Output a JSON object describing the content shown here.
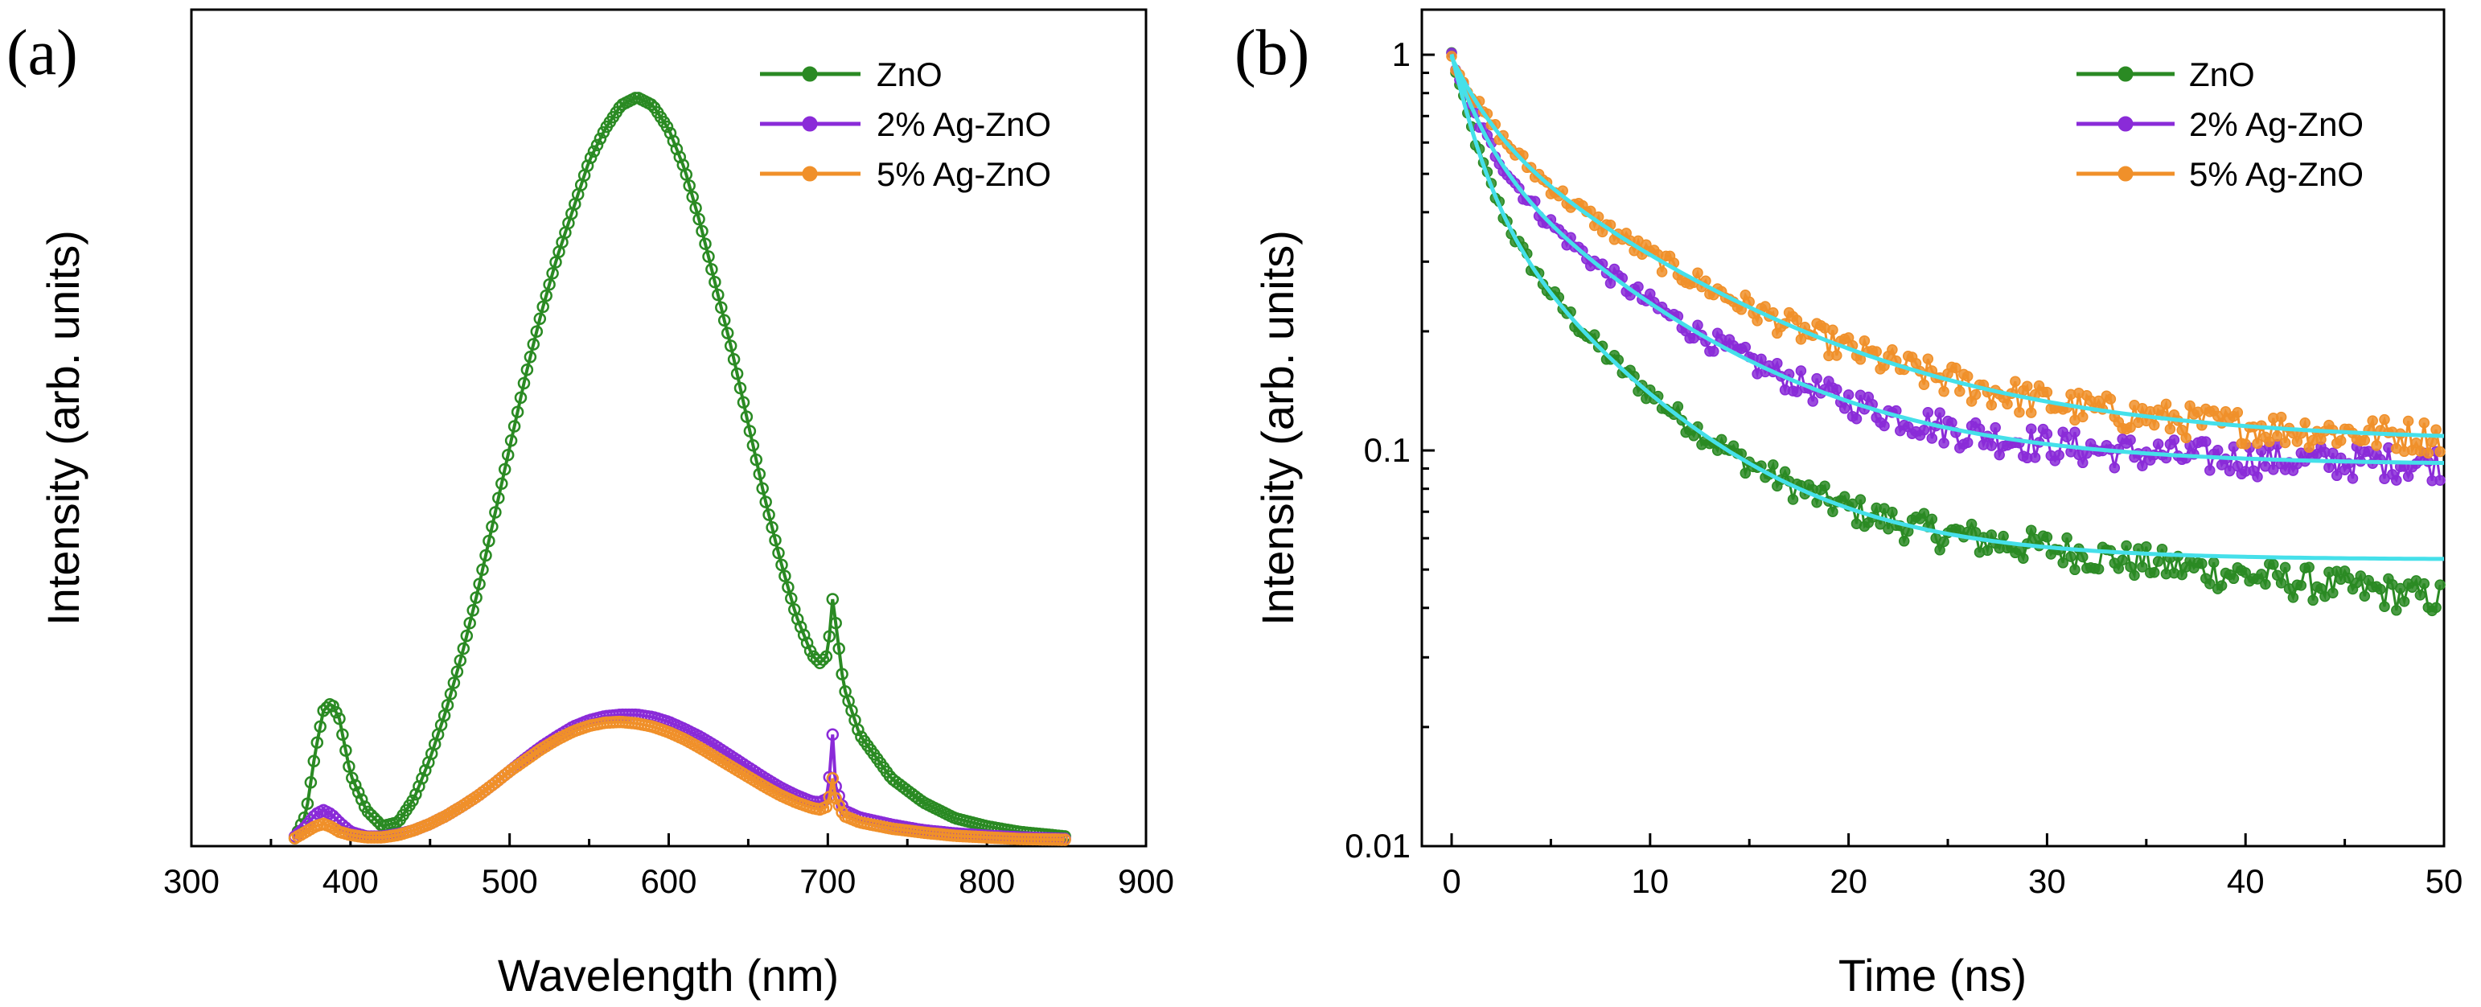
{
  "colors": {
    "zno": "#2a8a23",
    "ag2": "#8a2bd8",
    "ag5": "#f0902a",
    "fit": "#45e0ea"
  },
  "chart_data": [
    {
      "panel": "(a)",
      "type": "line",
      "title": "",
      "xlabel": "Wavelength (nm)",
      "ylabel": "Intensity (arb. units)",
      "xlim": [
        300,
        900
      ],
      "ylim": [
        0,
        1.05
      ],
      "xticks": [
        300,
        400,
        500,
        600,
        700,
        800,
        900
      ],
      "yticks_shown": false,
      "legend_position": "top-right",
      "series": [
        {
          "name": "ZnO",
          "color": "#2a8a23",
          "x": [
            365,
            372,
            378,
            383,
            388,
            393,
            400,
            410,
            420,
            430,
            440,
            450,
            460,
            470,
            480,
            490,
            500,
            510,
            520,
            530,
            540,
            550,
            560,
            570,
            580,
            590,
            600,
            610,
            620,
            630,
            640,
            650,
            660,
            670,
            680,
            690,
            695,
            700,
            703,
            705,
            710,
            720,
            740,
            760,
            780,
            800,
            820,
            850
          ],
          "y": [
            0.01,
            0.04,
            0.12,
            0.17,
            0.18,
            0.16,
            0.09,
            0.045,
            0.025,
            0.03,
            0.06,
            0.11,
            0.17,
            0.24,
            0.32,
            0.41,
            0.5,
            0.59,
            0.67,
            0.74,
            0.8,
            0.86,
            0.9,
            0.93,
            0.94,
            0.93,
            0.9,
            0.85,
            0.78,
            0.7,
            0.62,
            0.53,
            0.44,
            0.36,
            0.29,
            0.24,
            0.23,
            0.24,
            0.31,
            0.28,
            0.2,
            0.14,
            0.085,
            0.055,
            0.035,
            0.025,
            0.018,
            0.012
          ]
        },
        {
          "name": "2% Ag-ZnO",
          "color": "#8a2bd8",
          "x": [
            365,
            372,
            378,
            383,
            388,
            393,
            400,
            410,
            420,
            430,
            440,
            450,
            460,
            470,
            480,
            490,
            500,
            510,
            520,
            530,
            540,
            550,
            560,
            570,
            580,
            590,
            600,
            610,
            620,
            630,
            640,
            650,
            660,
            670,
            680,
            690,
            695,
            700,
            703,
            705,
            710,
            720,
            740,
            760,
            780,
            800,
            820,
            850
          ],
          "y": [
            0.012,
            0.025,
            0.04,
            0.045,
            0.04,
            0.03,
            0.018,
            0.012,
            0.012,
            0.015,
            0.02,
            0.028,
            0.038,
            0.05,
            0.063,
            0.078,
            0.094,
            0.11,
            0.125,
            0.138,
            0.15,
            0.158,
            0.163,
            0.165,
            0.165,
            0.162,
            0.156,
            0.147,
            0.137,
            0.125,
            0.112,
            0.099,
            0.086,
            0.074,
            0.064,
            0.056,
            0.055,
            0.06,
            0.14,
            0.075,
            0.045,
            0.036,
            0.027,
            0.02,
            0.016,
            0.013,
            0.011,
            0.009
          ]
        },
        {
          "name": "5% Ag-ZnO",
          "color": "#f0902a",
          "x": [
            365,
            372,
            378,
            383,
            388,
            393,
            400,
            410,
            420,
            430,
            440,
            450,
            460,
            470,
            480,
            490,
            500,
            510,
            520,
            530,
            540,
            550,
            560,
            570,
            580,
            590,
            600,
            610,
            620,
            630,
            640,
            650,
            660,
            670,
            680,
            690,
            695,
            700,
            703,
            705,
            710,
            720,
            740,
            760,
            780,
            800,
            820,
            850
          ],
          "y": [
            0.01,
            0.018,
            0.025,
            0.028,
            0.024,
            0.018,
            0.014,
            0.011,
            0.011,
            0.014,
            0.02,
            0.028,
            0.038,
            0.05,
            0.063,
            0.078,
            0.094,
            0.108,
            0.122,
            0.134,
            0.144,
            0.151,
            0.155,
            0.156,
            0.154,
            0.15,
            0.143,
            0.134,
            0.123,
            0.111,
            0.099,
            0.087,
            0.075,
            0.064,
            0.055,
            0.048,
            0.046,
            0.05,
            0.085,
            0.06,
            0.038,
            0.03,
            0.022,
            0.017,
            0.013,
            0.011,
            0.009,
            0.008
          ]
        }
      ]
    },
    {
      "panel": "(b)",
      "type": "scatter",
      "title": "",
      "xlabel": "Time (ns)",
      "ylabel": "Intensity (arb. units)",
      "xlim": [
        -1.5,
        50
      ],
      "ylim": [
        0.01,
        1.3
      ],
      "yscale": "log",
      "xticks": [
        0,
        10,
        20,
        30,
        40,
        50
      ],
      "ytick_labels": [
        "0.01",
        "0.1",
        "1"
      ],
      "yticks": [
        0.01,
        0.1,
        1
      ],
      "legend_position": "top-right",
      "series": [
        {
          "name": "ZnO",
          "color": "#2a8a23",
          "model": {
            "a1": 0.55,
            "t1": 1.3,
            "a2": 0.4,
            "t2": 6.5,
            "c": 0.053,
            "tail_drop": 0.011
          }
        },
        {
          "name": "2% Ag-ZnO",
          "color": "#8a2bd8",
          "model": {
            "a1": 0.4,
            "t1": 1.5,
            "a2": 0.5,
            "t2": 8.0,
            "c": 0.092,
            "tail_drop": 0.0
          }
        },
        {
          "name": "5% Ag-ZnO",
          "color": "#f0902a",
          "model": {
            "a1": 0.32,
            "t1": 1.8,
            "a2": 0.56,
            "t2": 10.0,
            "c": 0.105,
            "tail_drop": 0.0
          }
        }
      ]
    }
  ]
}
